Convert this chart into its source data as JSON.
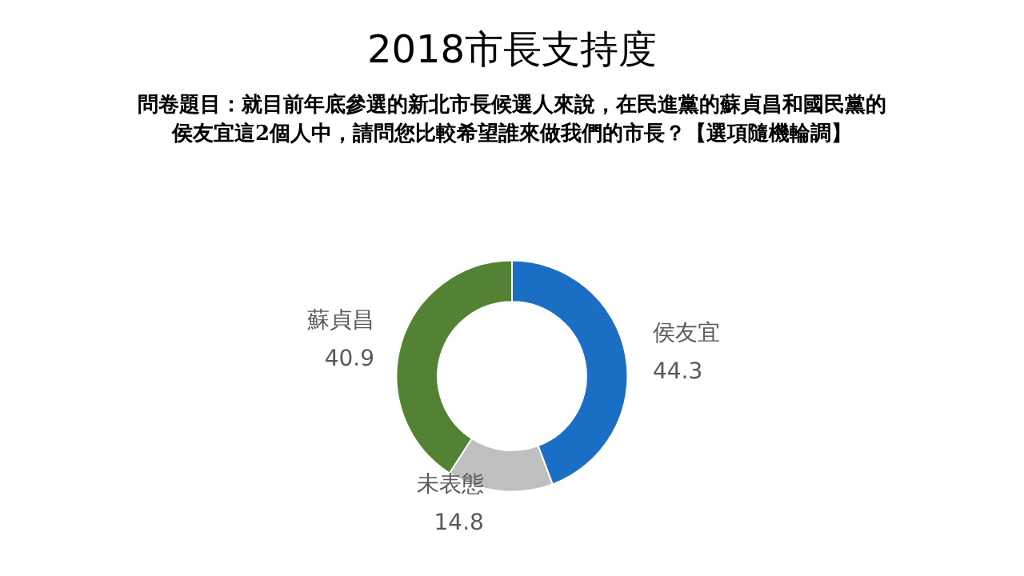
{
  "chart_data": {
    "type": "donut",
    "title": "2018市長支持度",
    "subtitle": "問卷題目：就目前年底參選的新北市長候選人來說，在民進黨的蘇貞昌和國民黨的侯友宜這2個人中，請問您比較希望誰來做我們的市長？【選項隨機輪調】",
    "categories": [
      "侯友宜",
      "未表態",
      "蘇貞昌"
    ],
    "values": [
      44.3,
      14.8,
      40.9
    ],
    "colors": [
      "#1a6fc4",
      "#bfbfbf",
      "#548235"
    ],
    "data_labels": true,
    "legend": false
  }
}
